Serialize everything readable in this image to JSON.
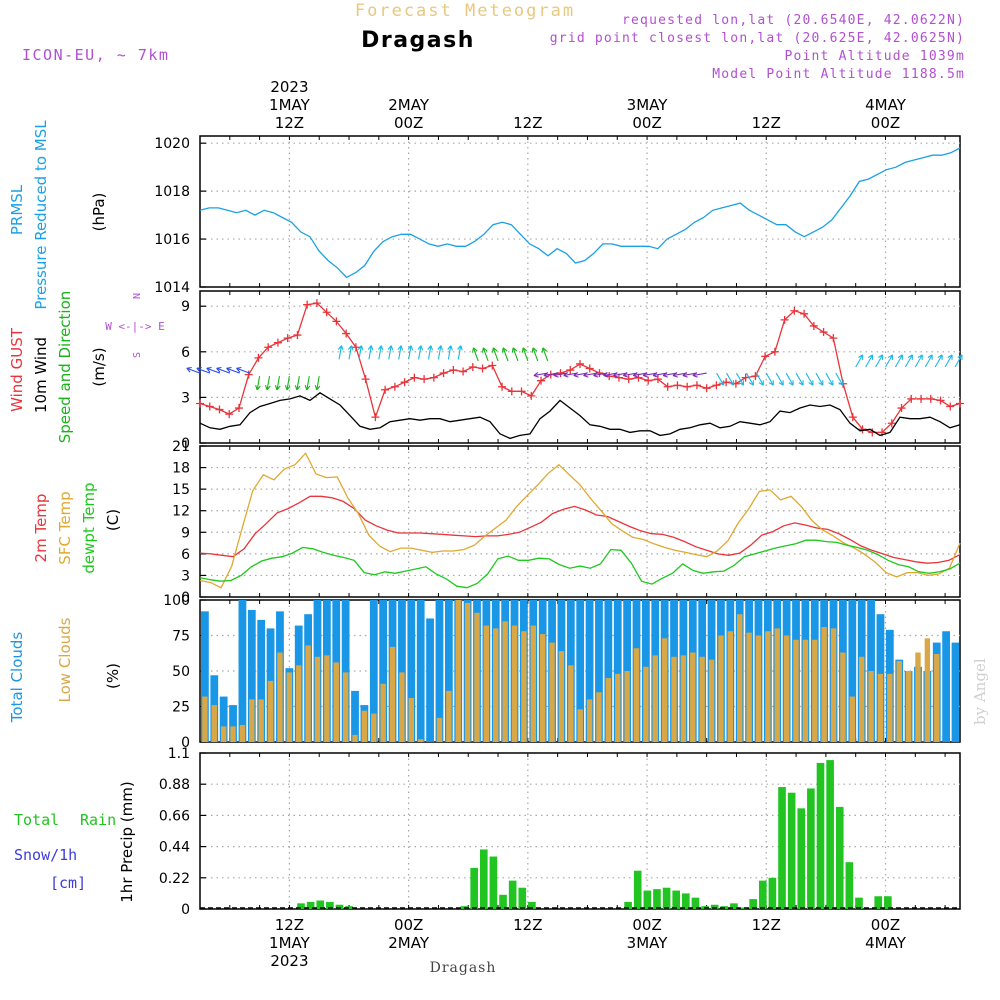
{
  "header": {
    "title_top": "Forecast Meteogram",
    "location": "Dragash",
    "model": "ICON-EU, ~ 7km",
    "requested": "requested lon,lat (20.6540E, 42.0622N)",
    "grid_point": "grid point closest lon,lat (20.625E, 42.0625N)",
    "point_alt": "Point Altitude 1039m",
    "model_alt": "Model Point Altitude 1188.5m",
    "footer_location": "Dragash",
    "watermark": "by Angel"
  },
  "time_axis": {
    "top_labels": [
      {
        "hour": 12,
        "l1": "2023",
        "l2": "1MAY",
        "l3": "12Z"
      },
      {
        "hour": 24,
        "l1": "",
        "l2": "2MAY",
        "l3": "00Z"
      },
      {
        "hour": 36,
        "l1": "",
        "l2": "",
        "l3": "12Z"
      },
      {
        "hour": 48,
        "l1": "",
        "l2": "3MAY",
        "l3": "00Z"
      },
      {
        "hour": 60,
        "l1": "",
        "l2": "",
        "l3": "12Z"
      },
      {
        "hour": 72,
        "l1": "",
        "l2": "4MAY",
        "l3": "00Z"
      }
    ],
    "bottom_labels": [
      {
        "hour": 12,
        "l1": "12Z",
        "l2": "1MAY",
        "l3": "2023"
      },
      {
        "hour": 24,
        "l1": "00Z",
        "l2": "2MAY",
        "l3": ""
      },
      {
        "hour": 36,
        "l1": "12Z",
        "l2": "",
        "l3": ""
      },
      {
        "hour": 48,
        "l1": "00Z",
        "l2": "3MAY",
        "l3": ""
      },
      {
        "hour": 60,
        "l1": "12Z",
        "l2": "",
        "l3": ""
      },
      {
        "hour": 72,
        "l1": "00Z",
        "l2": "4MAY",
        "l3": ""
      }
    ]
  },
  "colors": {
    "pressure": "#1aa0e6",
    "gust": "#e8343a",
    "wind": "#000000",
    "wind_label": "#1ab41a",
    "temp": "#e8343a",
    "sfc": "#e0a830",
    "dewpt": "#1ec81e",
    "total_clouds": "#1a96e6",
    "low_clouds": "#d8a848",
    "rain": "#22c422",
    "snow": "#3c3cdc",
    "header_purple": "#b24fd2",
    "header_orange": "#e8c880"
  },
  "chart_data": [
    {
      "type": "line",
      "name": "pressure",
      "labels": {
        "l1": "PRMSL",
        "l2": "Pressure Reduced to MSL",
        "unit": "(hPa)"
      },
      "ylim": [
        1014,
        1020.3
      ],
      "yticks": [
        1014,
        1016,
        1018,
        1020
      ],
      "series": [
        {
          "name": "PRMSL",
          "values": [
            1017.2,
            1017.3,
            1017.3,
            1017.2,
            1017.1,
            1017.2,
            1017.0,
            1017.2,
            1017.1,
            1016.9,
            1016.7,
            1016.3,
            1016.1,
            1015.5,
            1015.1,
            1014.8,
            1014.4,
            1014.6,
            1014.9,
            1015.5,
            1015.9,
            1016.1,
            1016.2,
            1016.2,
            1016.0,
            1015.8,
            1015.7,
            1015.8,
            1015.7,
            1015.7,
            1015.9,
            1016.2,
            1016.6,
            1016.7,
            1016.6,
            1016.2,
            1015.8,
            1015.6,
            1015.3,
            1015.6,
            1015.4,
            1015.0,
            1015.1,
            1015.4,
            1015.8,
            1015.8,
            1015.7,
            1015.7,
            1015.7,
            1015.7,
            1015.6,
            1016.0,
            1016.2,
            1016.4,
            1016.7,
            1016.9,
            1017.2,
            1017.3,
            1017.4,
            1017.5,
            1017.2,
            1017.0,
            1016.8,
            1016.6,
            1016.6,
            1016.3,
            1016.1,
            1016.3,
            1016.5,
            1016.8,
            1017.3,
            1017.8,
            1018.4,
            1018.5,
            1018.7,
            1018.9,
            1019.0,
            1019.2,
            1019.3,
            1019.4,
            1019.5,
            1019.5,
            1019.6,
            1019.8
          ]
        }
      ]
    },
    {
      "type": "line",
      "name": "wind",
      "labels": {
        "gust": "Wind GUST",
        "wind1": "10m Wind",
        "wind2": "Speed and Direction",
        "unit": "(m/s)",
        "compass_n": "N",
        "compass_s": "S",
        "compass_we": "W <-|-> E"
      },
      "ylim": [
        0,
        10
      ],
      "yticks": [
        0,
        3,
        6,
        9
      ],
      "series": [
        {
          "name": "Wind GUST",
          "values": [
            2.6,
            2.4,
            2.2,
            1.9,
            2.3,
            4.5,
            5.6,
            6.3,
            6.6,
            6.9,
            7.1,
            9.1,
            9.2,
            8.6,
            8.0,
            7.2,
            6.3,
            4.2,
            1.7,
            3.5,
            3.7,
            4.0,
            4.3,
            4.2,
            4.3,
            4.6,
            4.8,
            4.7,
            5.0,
            4.9,
            5.1,
            3.7,
            3.4,
            3.4,
            3.1,
            4.1,
            4.5,
            4.6,
            4.8,
            5.2,
            4.9,
            4.6,
            4.4,
            4.3,
            4.2,
            4.3,
            4.1,
            4.2,
            3.7,
            3.8,
            3.7,
            3.8,
            3.6,
            3.8,
            4.0,
            3.9,
            4.3,
            4.4,
            5.7,
            6.0,
            8.1,
            8.7,
            8.5,
            7.7,
            7.3,
            6.9,
            3.9,
            1.7,
            0.9,
            0.7,
            0.7,
            1.3,
            2.3,
            2.9,
            2.9,
            2.9,
            2.8,
            2.4,
            2.6
          ]
        },
        {
          "name": "10m Wind",
          "values": [
            1.3,
            1.0,
            0.9,
            1.1,
            1.2,
            2.0,
            2.4,
            2.6,
            2.8,
            2.9,
            3.1,
            2.8,
            3.3,
            2.9,
            2.5,
            1.8,
            1.1,
            0.9,
            1.0,
            1.4,
            1.5,
            1.6,
            1.5,
            1.6,
            1.6,
            1.4,
            1.5,
            1.6,
            1.7,
            1.4,
            0.6,
            0.3,
            0.5,
            0.6,
            1.6,
            2.1,
            2.8,
            2.3,
            1.8,
            1.2,
            1.1,
            0.9,
            0.9,
            0.7,
            0.8,
            0.8,
            0.5,
            0.6,
            0.9,
            1.0,
            1.2,
            1.3,
            1.0,
            1.1,
            1.4,
            1.3,
            1.2,
            1.4,
            2.1,
            2.0,
            2.3,
            2.5,
            2.4,
            2.5,
            2.2,
            1.3,
            0.8,
            0.9,
            0.5,
            0.7,
            1.7,
            1.6,
            1.6,
            1.7,
            1.4,
            1.0,
            1.2
          ]
        }
      ]
    },
    {
      "type": "line",
      "name": "temperature",
      "labels": {
        "temp": "2m Temp",
        "sfc": "SFC Temp",
        "dew": "dewpt Temp",
        "unit": "(C)"
      },
      "ylim": [
        0,
        21
      ],
      "yticks": [
        0,
        3,
        6,
        9,
        12,
        15,
        18,
        21
      ],
      "series": [
        {
          "name": "2m Temp",
          "values": [
            6.1,
            6.0,
            5.8,
            5.6,
            6.7,
            8.8,
            10.2,
            11.7,
            12.3,
            13.1,
            14.0,
            14.0,
            13.8,
            13.3,
            12.3,
            10.7,
            9.9,
            9.3,
            8.9,
            8.9,
            8.9,
            8.8,
            8.7,
            8.6,
            8.5,
            8.4,
            8.5,
            8.5,
            8.7,
            9.0,
            9.7,
            10.4,
            11.6,
            12.2,
            12.6,
            12.1,
            11.4,
            11.2,
            10.5,
            9.8,
            9.2,
            8.8,
            8.7,
            8.3,
            7.7,
            7.0,
            6.5,
            6.0,
            5.8,
            6.1,
            7.2,
            8.6,
            9.1,
            9.9,
            10.3,
            10.0,
            9.6,
            9.4,
            8.8,
            8.0,
            7.1,
            6.5,
            6.0,
            5.5,
            5.2,
            4.9,
            4.7,
            4.8,
            5.1,
            5.9
          ]
        },
        {
          "name": "SFC Temp",
          "values": [
            2.3,
            2.0,
            1.3,
            4.3,
            9.6,
            14.8,
            17.0,
            16.3,
            17.8,
            18.4,
            20.0,
            17.1,
            16.6,
            16.7,
            13.8,
            11.6,
            8.6,
            7.1,
            6.3,
            6.8,
            6.8,
            6.5,
            6.2,
            6.4,
            6.4,
            6.6,
            7.2,
            8.5,
            9.6,
            10.7,
            12.6,
            14.1,
            15.6,
            17.2,
            18.4,
            17.0,
            15.6,
            13.7,
            12.0,
            10.2,
            9.2,
            8.3,
            8.0,
            7.4,
            6.9,
            6.5,
            6.2,
            5.9,
            5.6,
            6.4,
            7.8,
            10.3,
            12.3,
            14.7,
            14.9,
            13.5,
            14.0,
            12.5,
            10.6,
            9.3,
            8.5,
            7.5,
            6.8,
            5.9,
            4.8,
            3.4,
            2.8,
            3.4,
            3.4,
            3.0,
            3.2,
            4.0,
            7.5
          ]
        },
        {
          "name": "dewpt Temp",
          "values": [
            2.7,
            2.4,
            2.2,
            2.3,
            3.0,
            4.2,
            5.0,
            5.4,
            5.6,
            6.1,
            6.9,
            6.7,
            6.2,
            5.8,
            5.5,
            5.1,
            3.4,
            3.1,
            3.5,
            3.3,
            3.6,
            3.9,
            4.2,
            3.2,
            2.5,
            1.5,
            1.3,
            1.9,
            3.2,
            5.3,
            5.7,
            5.1,
            5.1,
            5.4,
            5.3,
            4.5,
            4.0,
            4.3,
            4.0,
            4.6,
            6.6,
            6.5,
            4.7,
            2.2,
            1.8,
            2.6,
            3.3,
            4.6,
            3.7,
            3.3,
            3.5,
            3.6,
            4.4,
            5.6,
            6.0,
            6.4,
            6.8,
            7.1,
            7.4,
            7.9,
            7.9,
            7.7,
            7.6,
            7.2,
            6.9,
            6.5,
            5.9,
            5.1,
            4.5,
            4.2,
            3.5,
            3.3,
            3.5,
            3.9,
            4.7
          ]
        }
      ]
    },
    {
      "type": "bar",
      "name": "clouds",
      "labels": {
        "total": "Total Clouds",
        "low": "Low Clouds",
        "unit": "(%)"
      },
      "ylim": [
        0,
        100
      ],
      "yticks": [
        0,
        25,
        50,
        75,
        100
      ],
      "series": [
        {
          "name": "Total Clouds",
          "values": [
            92,
            47,
            32,
            26,
            100,
            93,
            86,
            80,
            92,
            52,
            82,
            90,
            100,
            100,
            100,
            100,
            36,
            26,
            100,
            100,
            100,
            100,
            100,
            100,
            87,
            100,
            100,
            100,
            100,
            100,
            100,
            100,
            100,
            100,
            100,
            100,
            100,
            100,
            100,
            100,
            100,
            100,
            100,
            100,
            100,
            100,
            100,
            100,
            100,
            100,
            100,
            100,
            100,
            100,
            100,
            100,
            100,
            100,
            100,
            100,
            100,
            100,
            100,
            100,
            100,
            100,
            100,
            100,
            100,
            100,
            100,
            100,
            90,
            79,
            58,
            50,
            53,
            50,
            70,
            78,
            70
          ]
        },
        {
          "name": "Low Clouds",
          "values": [
            32,
            26,
            11,
            11,
            12,
            30,
            30,
            43,
            63,
            49,
            54,
            68,
            60,
            61,
            56,
            49,
            5,
            22,
            20,
            41,
            67,
            49,
            31,
            2,
            0,
            17,
            36,
            100,
            98,
            91,
            82,
            80,
            85,
            82,
            78,
            82,
            76,
            70,
            64,
            54,
            23,
            30,
            35,
            45,
            48,
            50,
            66,
            53,
            61,
            73,
            60,
            61,
            63,
            60,
            58,
            75,
            78,
            90,
            77,
            75,
            78,
            80,
            75,
            72,
            72,
            72,
            81,
            80,
            63,
            32,
            60,
            50,
            48,
            48,
            57,
            50,
            63,
            73,
            62
          ]
        }
      ]
    },
    {
      "type": "bar",
      "name": "precip",
      "labels": {
        "total": "Total",
        "rain": "Rain",
        "snow": "Snow/1h",
        "cm": "[cm]",
        "unit": "1hr Precip (mm)"
      },
      "ylim": [
        0,
        1.1
      ],
      "yticks": [
        0,
        0.22,
        0.44,
        0.66,
        0.88,
        1.1
      ],
      "series": [
        {
          "name": "1hr Precip",
          "values": [
            0,
            0,
            0,
            0,
            0,
            0,
            0,
            0,
            0,
            0,
            0.04,
            0.05,
            0.06,
            0.05,
            0.03,
            0.02,
            0,
            0,
            0,
            0,
            0,
            0,
            0,
            0,
            0,
            0,
            0,
            0.02,
            0.29,
            0.42,
            0.37,
            0.1,
            0.2,
            0.15,
            0.05,
            0,
            0,
            0,
            0,
            0,
            0,
            0,
            0,
            0,
            0.05,
            0.27,
            0.13,
            0.14,
            0.15,
            0.13,
            0.11,
            0.08,
            0.02,
            0.03,
            0.02,
            0.04,
            0.01,
            0.07,
            0.2,
            0.22,
            0.86,
            0.82,
            0.71,
            0.85,
            1.03,
            1.05,
            0.72,
            0.33,
            0.08,
            0,
            0.09,
            0.09,
            0,
            0,
            0,
            0,
            0,
            0,
            0
          ]
        }
      ]
    }
  ]
}
